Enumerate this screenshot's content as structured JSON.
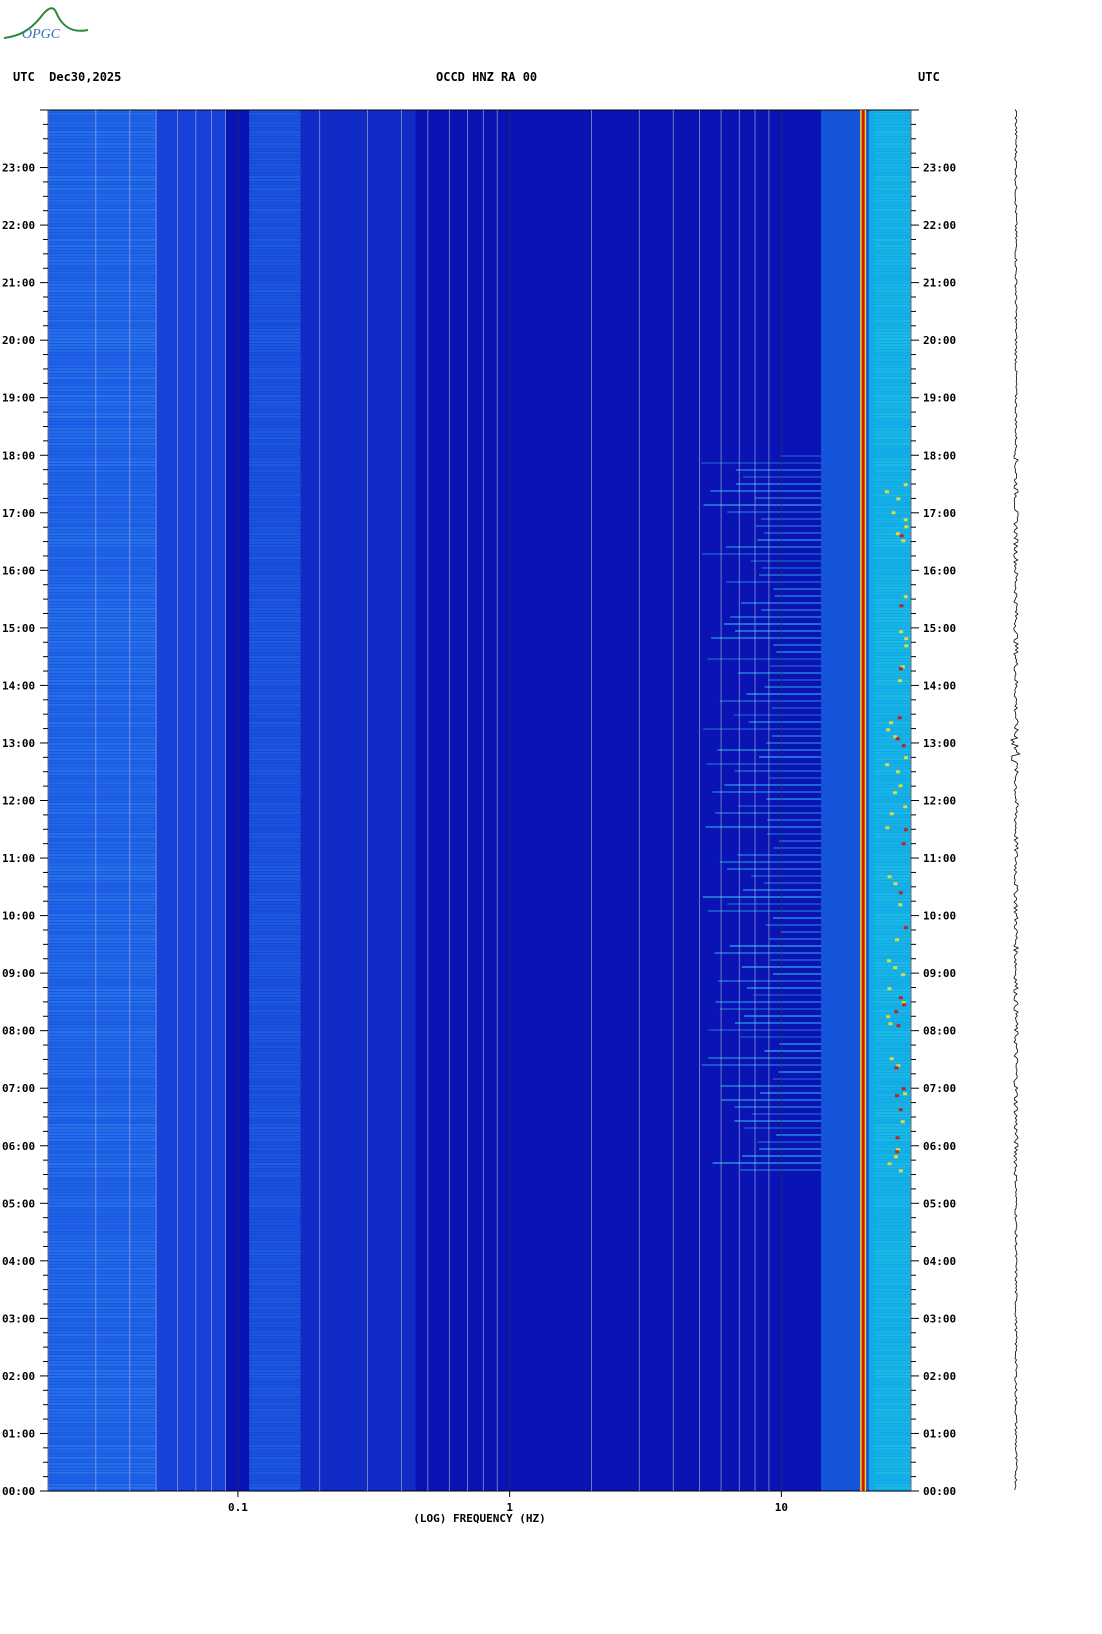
{
  "header": {
    "left": "UTC  Dec30,2025",
    "center": "OCCD HNZ RA 00",
    "right": "UTC"
  },
  "logo": {
    "text": "OPGC",
    "name": "opgc-logo"
  },
  "colors": {
    "background": "#0a14b4",
    "low_band": "#1c5ce6",
    "mid_band": "#1846dc",
    "high_band": "#10b8e8",
    "hot_line": "#c81a0a",
    "grid": "#bfc4d0"
  },
  "chart_data": {
    "type": "heatmap",
    "title": "OCCD HNZ RA 00",
    "xlabel": "(LOG) FREQUENCY (HZ)",
    "ylabel": "UTC",
    "x_scale": "log",
    "xlim": [
      0.02,
      30
    ],
    "x_tick_labels": [
      {
        "value": 0.1,
        "label": "0.1"
      },
      {
        "value": 1,
        "label": "1"
      },
      {
        "value": 10,
        "label": "10"
      }
    ],
    "x_grid_values": [
      0.02,
      0.03,
      0.04,
      0.05,
      0.06,
      0.07,
      0.08,
      0.09,
      0.1,
      0.2,
      0.3,
      0.4,
      0.5,
      0.6,
      0.7,
      0.8,
      0.9,
      1,
      2,
      3,
      4,
      5,
      6,
      7,
      8,
      9,
      10,
      20,
      30
    ],
    "y_tick_labels": [
      "00:00",
      "01:00",
      "02:00",
      "03:00",
      "04:00",
      "05:00",
      "06:00",
      "07:00",
      "08:00",
      "09:00",
      "10:00",
      "11:00",
      "12:00",
      "13:00",
      "14:00",
      "15:00",
      "16:00",
      "17:00",
      "18:00",
      "19:00",
      "20:00",
      "21:00",
      "22:00",
      "23:00"
    ],
    "ylim_hours": [
      0,
      24
    ],
    "persistent_line_hz": 20,
    "activity_windows_utc": [
      [
        5.5,
        18
      ]
    ],
    "grid": true
  }
}
